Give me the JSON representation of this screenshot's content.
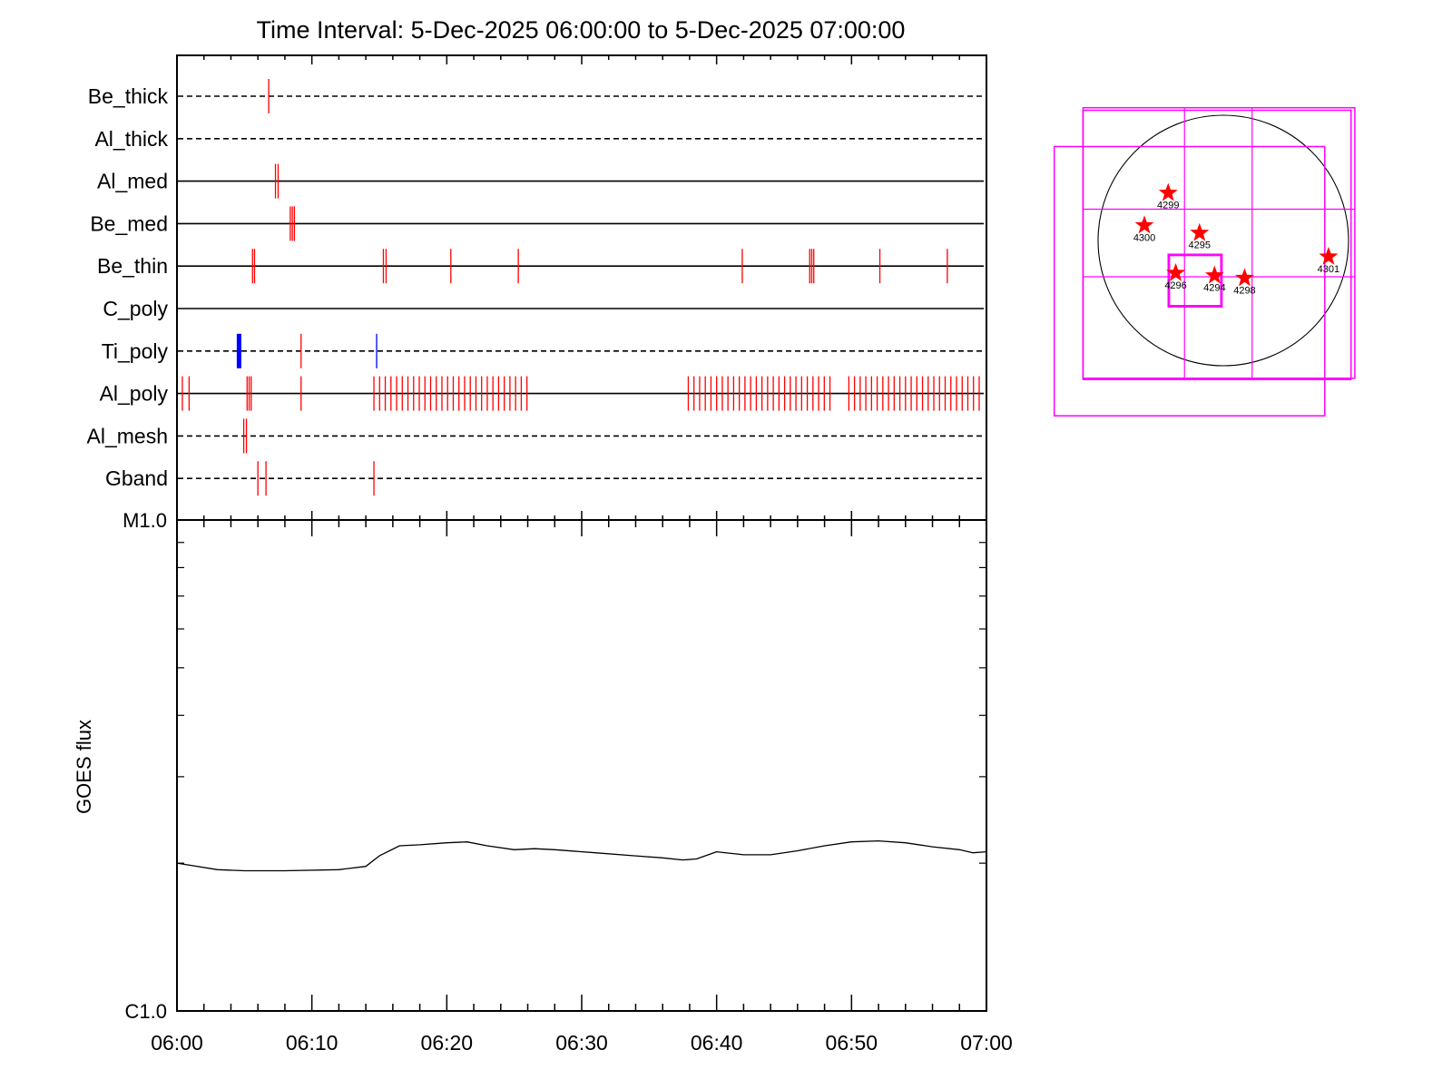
{
  "chart_data": [
    {
      "type": "timeline",
      "title": "Time Interval:  5-Dec-2025 06:00:00 to  5-Dec-2025 07:00:00",
      "x_range_minutes": [
        0,
        60
      ],
      "channels": [
        {
          "name": "Be_thick",
          "line_style": "dashed",
          "events": [
            {
              "t": 6.8,
              "color": "#ff0000"
            }
          ]
        },
        {
          "name": "Al_thick",
          "line_style": "dashed",
          "events": []
        },
        {
          "name": "Al_med",
          "line_style": "solid",
          "events": [
            {
              "t": 7.3,
              "color": "#ff0000"
            },
            {
              "t": 7.5,
              "color": "#ff0000"
            }
          ]
        },
        {
          "name": "Be_med",
          "line_style": "solid",
          "events": [
            {
              "t": 8.4,
              "color": "#ff0000"
            },
            {
              "t": 8.55,
              "color": "#ff0000"
            },
            {
              "t": 8.7,
              "color": "#ff0000"
            }
          ]
        },
        {
          "name": "Be_thin",
          "line_style": "solid",
          "events": [
            {
              "t": 5.6,
              "color": "#ff0000"
            },
            {
              "t": 5.75,
              "color": "#ff0000"
            },
            {
              "t": 15.3,
              "color": "#ff0000"
            },
            {
              "t": 15.5,
              "color": "#ff0000"
            },
            {
              "t": 20.3,
              "color": "#ff0000"
            },
            {
              "t": 25.3,
              "color": "#ff0000"
            },
            {
              "t": 41.9,
              "color": "#ff0000"
            },
            {
              "t": 46.9,
              "color": "#ff0000"
            },
            {
              "t": 47.05,
              "color": "#ff0000"
            },
            {
              "t": 47.2,
              "color": "#ff0000"
            },
            {
              "t": 52.1,
              "color": "#ff0000"
            },
            {
              "t": 57.1,
              "color": "#ff0000"
            }
          ]
        },
        {
          "name": "C_poly",
          "line_style": "solid",
          "events": []
        },
        {
          "name": "Ti_poly",
          "line_style": "dashed",
          "events": [
            {
              "t": 4.6,
              "color": "#0000ff",
              "bold": true
            },
            {
              "t": 9.2,
              "color": "#ff0000"
            },
            {
              "t": 14.8,
              "color": "#0000ff"
            }
          ]
        },
        {
          "name": "Al_poly",
          "line_style": "solid",
          "events": [
            {
              "t": 0.4,
              "color": "#ff0000"
            },
            {
              "t": 0.9,
              "color": "#ff0000"
            },
            {
              "t": 5.2,
              "color": "#ff0000"
            },
            {
              "t": 5.35,
              "color": "#ff0000"
            },
            {
              "t": 5.5,
              "color": "#ff0000"
            },
            {
              "t": 9.2,
              "color": "#ff0000"
            }
          ],
          "event_runs": [
            {
              "start": 14.6,
              "end": 26.2,
              "step": 0.42,
              "color": "#ff0000"
            },
            {
              "start": 37.9,
              "end": 48.4,
              "step": 0.42,
              "color": "#ff0000"
            },
            {
              "start": 49.8,
              "end": 59.7,
              "step": 0.42,
              "color": "#ff0000"
            }
          ]
        },
        {
          "name": "Al_mesh",
          "line_style": "dashed",
          "events": [
            {
              "t": 4.95,
              "color": "#ff0000"
            },
            {
              "t": 5.15,
              "color": "#ff0000"
            }
          ]
        },
        {
          "name": "Gband",
          "line_style": "dashed",
          "events": [
            {
              "t": 6.0,
              "color": "#ff0000"
            },
            {
              "t": 6.6,
              "color": "#ff0000"
            },
            {
              "t": 14.6,
              "color": "#ff0000"
            }
          ]
        }
      ]
    },
    {
      "type": "line",
      "ylabel": "GOES flux",
      "y_scale": "log",
      "ylim": [
        "C1.0",
        "M1.0"
      ],
      "ytick_labels": [
        "C1.0",
        "M1.0"
      ],
      "ytick_values": [
        1e-06,
        1e-05
      ],
      "xlim": [
        0,
        60
      ],
      "xtick_labels": [
        "06:00",
        "06:10",
        "06:20",
        "06:30",
        "06:40",
        "06:50",
        "07:00"
      ],
      "xtick_minutes": [
        0,
        10,
        20,
        30,
        40,
        50,
        60
      ],
      "series": [
        {
          "x": [
            0,
            1,
            3,
            5,
            8,
            12,
            14,
            15,
            16.5,
            18,
            20,
            21.5,
            23,
            25,
            26.5,
            28,
            31,
            34,
            36,
            37.5,
            38.5,
            40,
            42,
            44,
            46,
            48,
            50,
            52,
            54,
            56,
            58,
            59,
            60
          ],
          "y": [
            2e-06,
            1.98e-06,
            1.94e-06,
            1.93e-06,
            1.93e-06,
            1.94e-06,
            1.97e-06,
            2.07e-06,
            2.17e-06,
            2.18e-06,
            2.2e-06,
            2.21e-06,
            2.17e-06,
            2.13e-06,
            2.14e-06,
            2.13e-06,
            2.1e-06,
            2.07e-06,
            2.05e-06,
            2.03e-06,
            2.04e-06,
            2.11e-06,
            2.08e-06,
            2.08e-06,
            2.12e-06,
            2.17e-06,
            2.21e-06,
            2.22e-06,
            2.2e-06,
            2.16e-06,
            2.13e-06,
            2.1e-06,
            2.11e-06
          ]
        }
      ]
    },
    {
      "type": "diagram",
      "description_fields": [
        "solar disk with active regions"
      ],
      "active_regions": [
        {
          "label": "4299",
          "x": -0.44,
          "y": 0.38
        },
        {
          "label": "4300",
          "x": -0.63,
          "y": 0.12
        },
        {
          "label": "4295",
          "x": -0.19,
          "y": 0.06
        },
        {
          "label": "4301",
          "x": 0.84,
          "y": -0.13
        },
        {
          "label": "4296",
          "x": -0.38,
          "y": -0.26
        },
        {
          "label": "4294",
          "x": -0.07,
          "y": -0.28
        },
        {
          "label": "4298",
          "x": 0.17,
          "y": -0.3
        }
      ],
      "star_color": "#ff0000",
      "box_color": "#ff00ff",
      "grid_lines_x": [
        -0.31,
        0.23
      ],
      "grid_lines_y": [
        0.25,
        -0.29
      ],
      "fov_boxes": [
        {
          "x0": -1.12,
          "x1": 1.05,
          "y0": 1.06,
          "y1": -1.1
        },
        {
          "x0": -1.35,
          "x1": 0.81,
          "y0": 0.75,
          "y1": -1.4
        },
        {
          "x0": -1.12,
          "x1": 1.02,
          "y0": 1.04,
          "y1": -1.11
        },
        {
          "x0": -0.43,
          "x1": -0.02,
          "y0": -0.12,
          "y1": -0.52
        },
        {
          "x0": -0.44,
          "x1": -0.01,
          "y0": -0.11,
          "y1": -0.53
        }
      ]
    }
  ]
}
